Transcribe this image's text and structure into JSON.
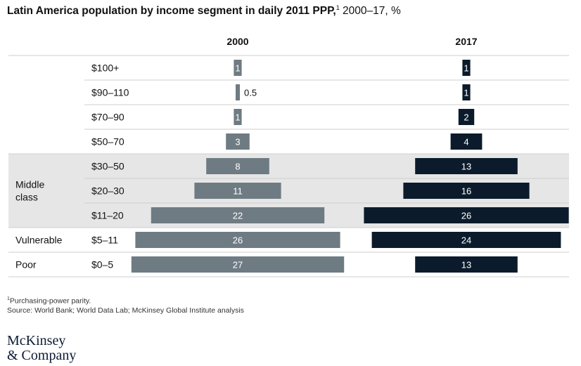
{
  "title": {
    "bold": "Latin America population by income segment in daily 2011 PPP,",
    "footnote_mark": "1",
    "rest": " 2000–17, %"
  },
  "chart_data": {
    "type": "bar",
    "orientation": "horizontal-centered",
    "title": "Latin America population by income segment in daily 2011 PPP, 2000–17, %",
    "categories": [
      "$100+",
      "$90–110",
      "$70–90",
      "$50–70",
      "$30–50",
      "$20–30",
      "$11–20",
      "$5–11",
      "$0–5"
    ],
    "groups": [
      {
        "label": "",
        "rows": [
          0,
          1,
          2,
          3
        ]
      },
      {
        "label": "Middle\nclass",
        "rows": [
          4,
          5,
          6
        ],
        "shaded": true
      },
      {
        "label": "Vulnerable",
        "rows": [
          7
        ]
      },
      {
        "label": "Poor",
        "rows": [
          8
        ]
      }
    ],
    "series": [
      {
        "name": "2000",
        "color": "#6f7b83",
        "values": [
          1,
          0.5,
          1,
          3,
          8,
          11,
          22,
          26,
          27
        ],
        "labels": [
          "1",
          "0.5",
          "1",
          "3",
          "8",
          "11",
          "22",
          "26",
          "27"
        ]
      },
      {
        "name": "2017",
        "color": "#0b1b2b",
        "values": [
          1,
          1,
          2,
          4,
          13,
          16,
          26,
          24,
          13
        ],
        "labels": [
          "1",
          "1",
          "2",
          "4",
          "13",
          "16",
          "26",
          "24",
          "13"
        ]
      }
    ],
    "shade_color": "#e6e6e6"
  },
  "footnotes": {
    "ppp_mark": "1",
    "ppp": "Purchasing-power parity.",
    "source": "Source: World Bank; World Data Lab; McKinsey Global Institute analysis"
  },
  "logo": {
    "line1": "McKinsey",
    "line2": "& Company"
  }
}
